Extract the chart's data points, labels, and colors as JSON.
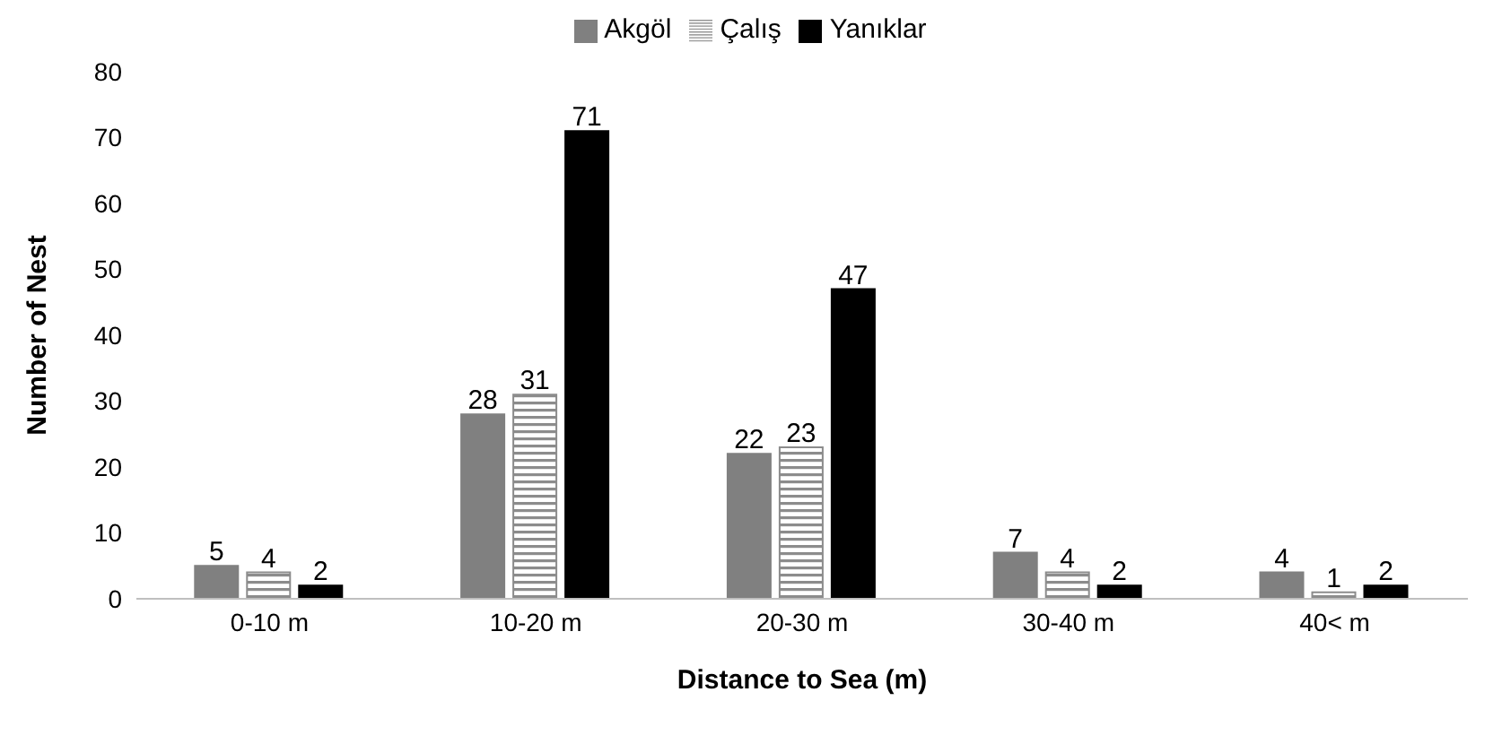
{
  "chart_data": {
    "type": "bar",
    "xlabel": "Distance to Sea (m)",
    "ylabel": "Number of Nest",
    "categories": [
      "0-10 m",
      "10-20 m",
      "20-30 m",
      "30-40 m",
      "40< m"
    ],
    "series": [
      {
        "name": "Akgöl",
        "color": "#808080",
        "values": [
          5,
          28,
          22,
          7,
          4
        ]
      },
      {
        "name": "Çalış",
        "color": "#8c8c8c",
        "values": [
          4,
          31,
          23,
          4,
          1
        ]
      },
      {
        "name": "Yanıklar",
        "color": "#000000",
        "values": [
          2,
          71,
          47,
          2,
          2
        ]
      }
    ],
    "ylim": [
      0,
      80
    ],
    "yticks": [
      0,
      10,
      20,
      30,
      40,
      50,
      60,
      70,
      80
    ],
    "grid": false,
    "legend": "top",
    "data_labels": true
  }
}
